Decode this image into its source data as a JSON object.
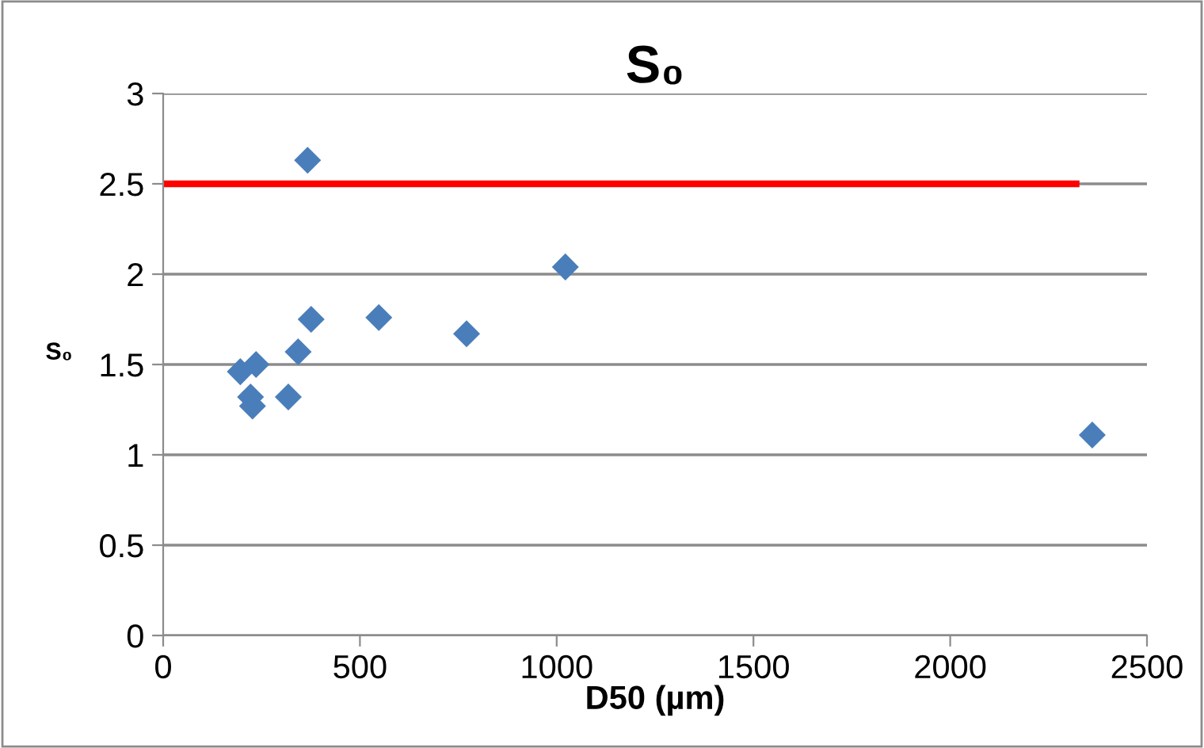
{
  "chart_data": {
    "type": "scatter",
    "title": "S₀",
    "xlabel": "D50 (µm)",
    "ylabel": "S₀",
    "xlim": [
      0,
      2500
    ],
    "xticks": [
      0,
      500,
      1000,
      1500,
      2000,
      2500
    ],
    "ylim": [
      0,
      3
    ],
    "yticks": [
      0,
      0.5,
      1,
      1.5,
      2,
      2.5,
      3
    ],
    "grid": "y",
    "marker": "diamond",
    "series": [
      {
        "color": "#4a7ebb",
        "x": [
          367,
          1022,
          376,
          548,
          771,
          343,
          236,
          196,
          222,
          227,
          318,
          2361
        ],
        "values": [
          2.63,
          2.04,
          1.75,
          1.76,
          1.67,
          1.57,
          1.5,
          1.46,
          1.32,
          1.27,
          1.32,
          1.11
        ]
      },
      {
        "type": "line",
        "color": "#ff0000",
        "marker": "none",
        "x": [
          0,
          2320
        ],
        "values": [
          2.5,
          2.5
        ]
      }
    ]
  }
}
